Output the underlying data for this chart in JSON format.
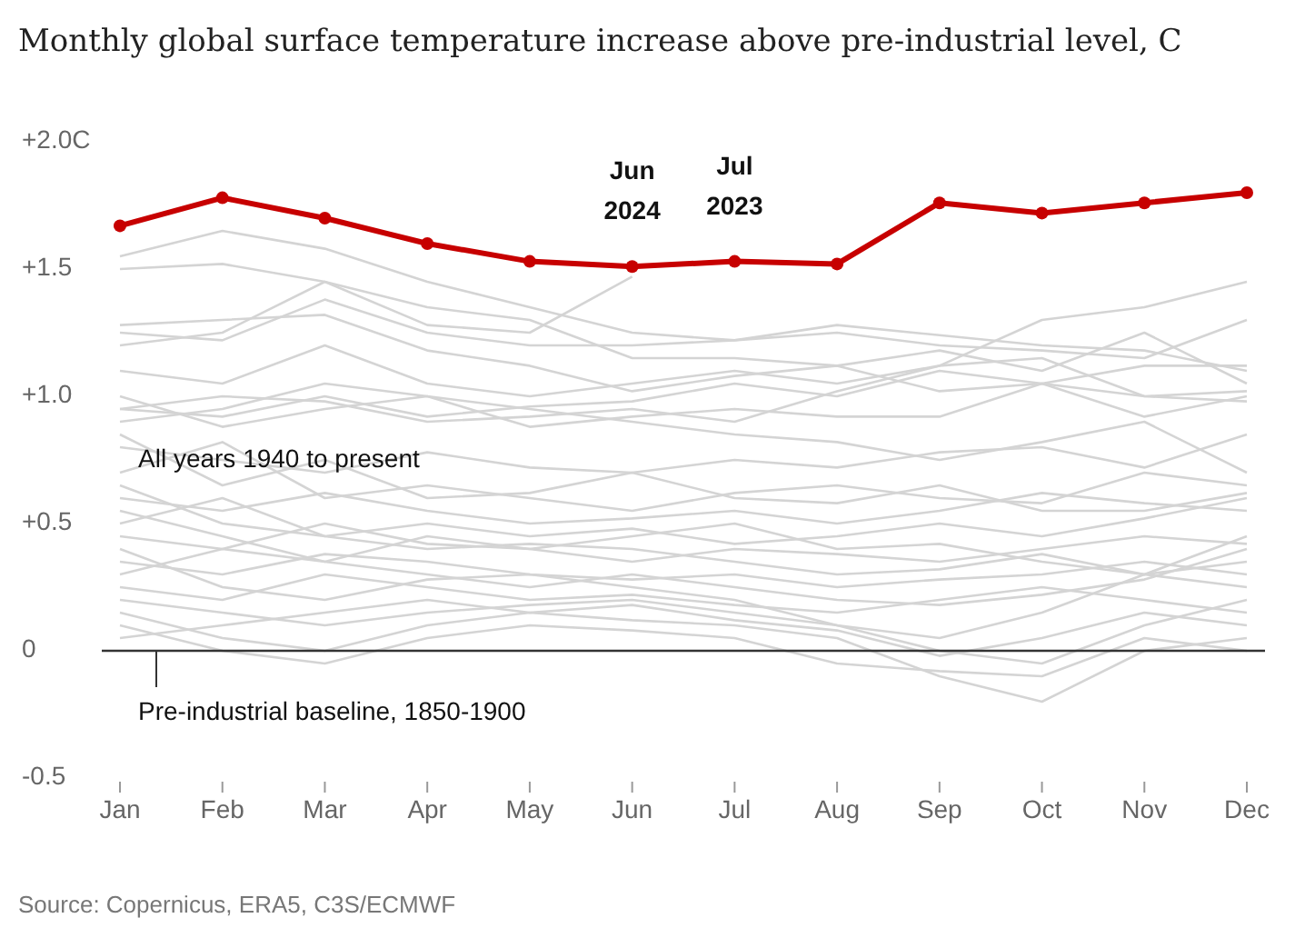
{
  "chart_data": {
    "type": "line",
    "title": "Monthly global surface temperature increase above pre-industrial level, C",
    "categories": [
      "Jan",
      "Feb",
      "Mar",
      "Apr",
      "May",
      "Jun",
      "Jul",
      "Aug",
      "Sep",
      "Oct",
      "Nov",
      "Dec"
    ],
    "ylim": [
      -0.5,
      2.0
    ],
    "yticks": [
      {
        "value": -0.5,
        "label": "-0.5"
      },
      0,
      {
        "value": 0.5,
        "label": "+0.5"
      },
      {
        "value": 1.0,
        "label": "+1.0"
      },
      {
        "value": 1.5,
        "label": "+1.5"
      },
      {
        "value": 2.0,
        "label": "+2.0C"
      }
    ],
    "grid": false,
    "ref_lines": [
      {
        "axis": "y",
        "value": 0,
        "label": "Pre-industrial baseline, 1850-1900",
        "color": "#333333"
      }
    ],
    "annotations": [
      {
        "text": "All years 1940 to present",
        "x": "Jan",
        "y": 0.72
      },
      {
        "text": "Jun 2024",
        "x": "Jun",
        "y": 1.51
      },
      {
        "text": "Jul 2023",
        "x": "Jul",
        "y": 1.53
      },
      "Source: Copernicus, ERA5, C3S/ECMWF"
    ],
    "series": [
      {
        "color": "#d4d4d4",
        "marker": "none",
        "values": [
          1.55,
          1.65,
          1.58,
          1.45,
          1.35,
          1.25,
          1.22,
          1.28,
          1.24,
          1.2,
          1.18,
          1.1
        ]
      },
      {
        "color": "#d4d4d4",
        "marker": "none",
        "values": [
          1.5,
          1.52,
          1.45,
          1.35,
          1.3,
          1.15,
          1.15,
          1.12,
          1.18,
          1.1,
          1.25,
          1.05
        ]
      },
      {
        "color": "#d4d4d4",
        "marker": "none",
        "values": [
          1.2,
          1.25,
          1.45,
          1.28,
          1.25,
          1.47,
          null,
          null,
          null,
          null,
          null,
          null
        ]
      },
      {
        "color": "#d4d4d4",
        "marker": "none",
        "values": [
          1.25,
          1.22,
          1.38,
          1.25,
          1.2,
          1.2,
          1.22,
          1.25,
          1.2,
          1.18,
          1.15,
          1.3
        ]
      },
      {
        "color": "#d4d4d4",
        "marker": "none",
        "values": [
          1.28,
          1.3,
          1.32,
          1.18,
          1.12,
          1.02,
          1.08,
          1.12,
          1.02,
          1.05,
          1.0,
          1.02
        ]
      },
      {
        "color": "#d4d4d4",
        "marker": "none",
        "values": [
          1.1,
          1.05,
          1.2,
          1.05,
          1.0,
          1.05,
          1.1,
          1.05,
          1.12,
          1.15,
          1.0,
          0.98
        ]
      },
      {
        "color": "#d4d4d4",
        "marker": "none",
        "values": [
          0.95,
          0.92,
          1.0,
          0.92,
          0.96,
          0.98,
          1.05,
          1.0,
          1.1,
          1.05,
          1.12,
          1.12
        ]
      },
      {
        "color": "#d4d4d4",
        "marker": "none",
        "values": [
          0.95,
          1.0,
          0.98,
          0.9,
          0.92,
          0.95,
          0.9,
          1.02,
          1.12,
          1.3,
          1.35,
          1.45
        ]
      },
      {
        "color": "#d4d4d4",
        "marker": "none",
        "values": [
          0.9,
          0.95,
          1.05,
          1.0,
          0.95,
          0.9,
          0.85,
          0.82,
          0.75,
          0.82,
          0.9,
          0.7
        ]
      },
      {
        "color": "#d4d4d4",
        "marker": "none",
        "values": [
          1.0,
          0.88,
          0.95,
          1.0,
          0.88,
          0.92,
          0.95,
          0.92,
          0.92,
          1.05,
          0.92,
          1.0
        ]
      },
      {
        "color": "#d4d4d4",
        "marker": "none",
        "values": [
          0.8,
          0.75,
          0.7,
          0.78,
          0.72,
          0.7,
          0.75,
          0.72,
          0.78,
          0.8,
          0.72,
          0.85
        ]
      },
      {
        "color": "#d4d4d4",
        "marker": "none",
        "values": [
          0.7,
          0.82,
          0.6,
          0.65,
          0.6,
          0.55,
          0.62,
          0.65,
          0.6,
          0.58,
          0.7,
          0.65
        ]
      },
      {
        "color": "#d4d4d4",
        "marker": "none",
        "values": [
          0.6,
          0.55,
          0.62,
          0.55,
          0.5,
          0.52,
          0.55,
          0.5,
          0.55,
          0.62,
          0.58,
          0.55
        ]
      },
      {
        "color": "#d4d4d4",
        "marker": "none",
        "values": [
          0.65,
          0.5,
          0.45,
          0.5,
          0.45,
          0.48,
          0.42,
          0.45,
          0.5,
          0.45,
          0.52,
          0.6
        ]
      },
      {
        "color": "#d4d4d4",
        "marker": "none",
        "values": [
          0.45,
          0.4,
          0.5,
          0.42,
          0.4,
          0.35,
          0.4,
          0.38,
          0.35,
          0.4,
          0.45,
          0.42
        ]
      },
      {
        "color": "#d4d4d4",
        "marker": "none",
        "values": [
          0.5,
          0.6,
          0.45,
          0.4,
          0.42,
          0.4,
          0.35,
          0.3,
          0.32,
          0.38,
          0.3,
          0.35
        ]
      },
      {
        "color": "#d4d4d4",
        "marker": "none",
        "values": [
          0.35,
          0.3,
          0.38,
          0.35,
          0.3,
          0.28,
          0.3,
          0.25,
          0.28,
          0.3,
          0.35,
          0.3
        ]
      },
      {
        "color": "#d4d4d4",
        "marker": "none",
        "values": [
          0.3,
          0.4,
          0.35,
          0.3,
          0.25,
          0.3,
          0.25,
          0.2,
          0.18,
          0.22,
          0.28,
          0.4
        ]
      },
      {
        "color": "#d4d4d4",
        "marker": "none",
        "values": [
          0.25,
          0.2,
          0.3,
          0.25,
          0.2,
          0.22,
          0.18,
          0.15,
          0.2,
          0.25,
          0.2,
          0.15
        ]
      },
      {
        "color": "#d4d4d4",
        "marker": "none",
        "values": [
          0.4,
          0.25,
          0.2,
          0.28,
          0.3,
          0.25,
          0.2,
          0.1,
          0.05,
          0.15,
          0.3,
          0.25
        ]
      },
      {
        "color": "#d4d4d4",
        "marker": "none",
        "values": [
          0.2,
          0.15,
          0.1,
          0.15,
          0.18,
          0.2,
          0.15,
          0.1,
          0.0,
          -0.05,
          0.1,
          0.2
        ]
      },
      {
        "color": "#d4d4d4",
        "marker": "none",
        "values": [
          0.15,
          0.05,
          0.0,
          0.1,
          0.15,
          0.12,
          0.1,
          0.05,
          -0.1,
          -0.2,
          0.0,
          0.05
        ]
      },
      {
        "color": "#d4d4d4",
        "marker": "none",
        "values": [
          0.1,
          0.0,
          -0.05,
          0.05,
          0.1,
          0.08,
          0.05,
          -0.05,
          -0.08,
          -0.1,
          0.05,
          0.0
        ]
      },
      {
        "color": "#d4d4d4",
        "marker": "none",
        "values": [
          0.05,
          0.1,
          0.15,
          0.2,
          0.15,
          0.18,
          0.12,
          0.08,
          -0.02,
          0.05,
          0.15,
          0.1
        ]
      },
      {
        "color": "#d4d4d4",
        "marker": "none",
        "values": [
          0.55,
          0.45,
          0.35,
          0.45,
          0.4,
          0.45,
          0.5,
          0.4,
          0.42,
          0.35,
          0.3,
          0.45
        ]
      },
      {
        "color": "#d4d4d4",
        "marker": "none",
        "values": [
          0.85,
          0.65,
          0.75,
          0.6,
          0.62,
          0.7,
          0.6,
          0.58,
          0.65,
          0.55,
          0.55,
          0.62
        ]
      },
      {
        "color": "#c70000",
        "marker": "circle",
        "values": [
          1.67,
          1.78,
          1.7,
          1.6,
          1.53,
          1.51,
          1.53,
          1.52,
          1.76,
          1.72,
          1.76,
          1.8
        ]
      }
    ]
  }
}
